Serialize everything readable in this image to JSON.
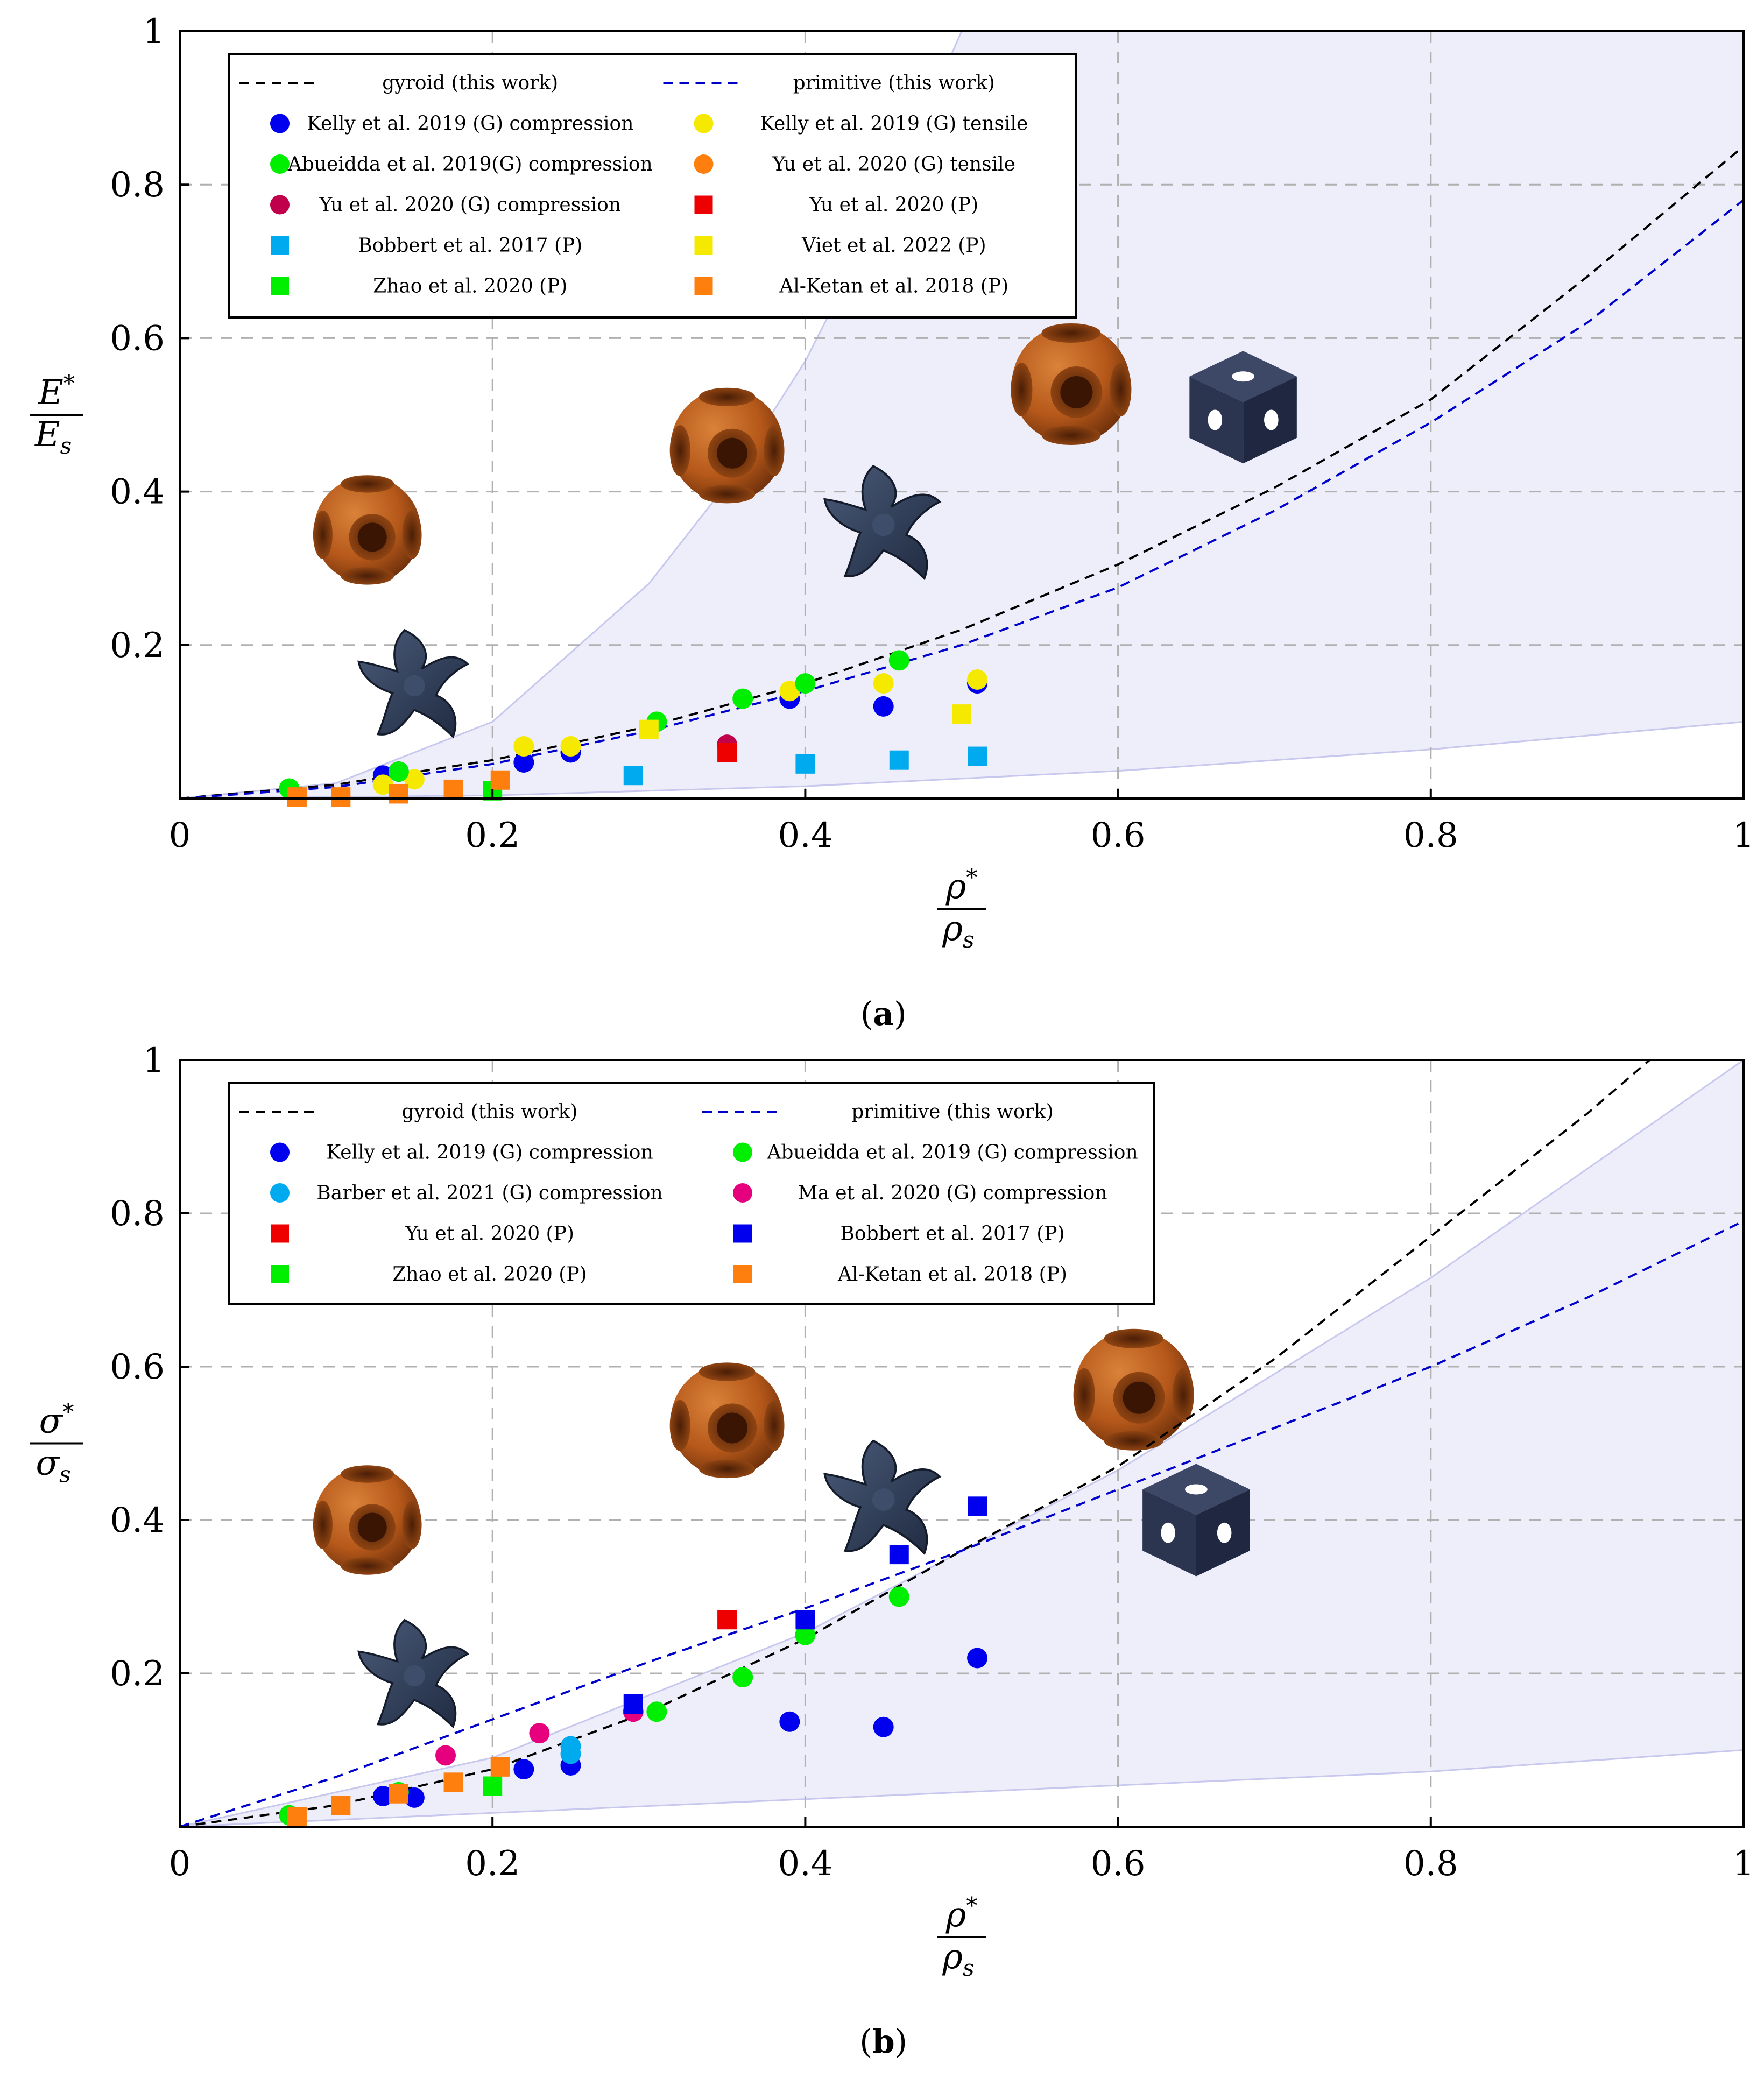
{
  "colors": {
    "blue": "#0000ee",
    "green": "#00ee00",
    "yellow": "#f5e900",
    "orange": "#ff7f0e",
    "crimson": "#c0004a",
    "red": "#ee0000",
    "skyblue": "#00aaee",
    "magenta": "#e6007e",
    "band": "#eeeefa",
    "bandEdge": "#c8c8ee",
    "gyroid_line": "#000000",
    "primitive_line": "#0000cc",
    "grid": "#b0b0b0",
    "sphere": "#b5581a",
    "gyroid_shape": "#2c3a56",
    "cube": "#2b3550"
  },
  "icons": [
    "primitive-cell-sphere",
    "gyroid-cell",
    "primitive-cell-cube"
  ],
  "chart_data": [
    {
      "type": "scatter",
      "panel": "a",
      "caption": "a",
      "xlabel": "ρ*/ρs",
      "ylabel": "E*/Es",
      "xlabel_parts": {
        "num": "ρ",
        "num_sup": "*",
        "den": "ρ",
        "den_sub": "s"
      },
      "ylabel_parts": {
        "num": "E",
        "num_sup": "*",
        "den": "E",
        "den_sub": "s"
      },
      "xlim": [
        0,
        1
      ],
      "ylim": [
        0,
        1
      ],
      "xticks": [
        "0",
        "0.2",
        "0.4",
        "0.6",
        "0.8",
        "1"
      ],
      "yticks": [
        "0.2",
        "0.4",
        "0.6",
        "0.8",
        "1"
      ],
      "grid": true,
      "legend_position": "top-left",
      "band": {
        "upper": {
          "x": [
            0,
            0.1,
            0.2,
            0.3,
            0.35,
            0.4,
            0.45,
            0.5
          ],
          "y": [
            0,
            0.02,
            0.1,
            0.28,
            0.41,
            0.57,
            0.77,
            1.0
          ]
        },
        "lower": {
          "x": [
            0,
            0.2,
            0.4,
            0.6,
            0.8,
            1.0
          ],
          "y": [
            0,
            0.004,
            0.016,
            0.036,
            0.064,
            0.1
          ]
        }
      },
      "lines": [
        {
          "name": "gyroid (this work)",
          "color": "gyroid_line",
          "x": [
            0,
            0.1,
            0.2,
            0.3,
            0.4,
            0.5,
            0.6,
            0.7,
            0.8,
            0.9,
            1.0
          ],
          "y": [
            0,
            0.018,
            0.05,
            0.094,
            0.15,
            0.22,
            0.305,
            0.405,
            0.52,
            0.68,
            0.85
          ]
        },
        {
          "name": "primitive (this work)",
          "color": "primitive_line",
          "x": [
            0,
            0.1,
            0.2,
            0.3,
            0.4,
            0.5,
            0.6,
            0.7,
            0.8,
            0.9,
            1.0
          ],
          "y": [
            0,
            0.015,
            0.045,
            0.088,
            0.14,
            0.2,
            0.275,
            0.375,
            0.49,
            0.62,
            0.78
          ]
        }
      ],
      "series": [
        {
          "name": "Kelly et al. 2019 (G) compression",
          "marker": "circle",
          "color": "blue",
          "x": [
            0.13,
            0.14,
            0.22,
            0.25,
            0.39,
            0.45,
            0.51
          ],
          "y": [
            0.03,
            0.035,
            0.047,
            0.06,
            0.13,
            0.12,
            0.15
          ]
        },
        {
          "name": "Kelly et al. 2019 (G) tensile",
          "marker": "circle",
          "color": "yellow",
          "x": [
            0.13,
            0.15,
            0.22,
            0.25,
            0.39,
            0.45,
            0.51
          ],
          "y": [
            0.018,
            0.025,
            0.068,
            0.068,
            0.14,
            0.15,
            0.155
          ]
        },
        {
          "name": "Abueidda et al. 2019(G) compression",
          "marker": "circle",
          "color": "green",
          "x": [
            0.07,
            0.14,
            0.305,
            0.36,
            0.4,
            0.46
          ],
          "y": [
            0.013,
            0.035,
            0.1,
            0.13,
            0.15,
            0.18
          ]
        },
        {
          "name": "Yu et al. 2020 (G) tensile",
          "marker": "circle",
          "color": "orange",
          "x": [],
          "y": []
        },
        {
          "name": "Yu et al. 2020 (G) compression",
          "marker": "circle",
          "color": "crimson",
          "x": [
            0.35
          ],
          "y": [
            0.07
          ]
        },
        {
          "name": "Yu et al. 2020 (P)",
          "marker": "square",
          "color": "red",
          "x": [
            0.35
          ],
          "y": [
            0.06
          ]
        },
        {
          "name": "Bobbert et al. 2017 (P)",
          "marker": "square",
          "color": "skyblue",
          "x": [
            0.29,
            0.4,
            0.46,
            0.51
          ],
          "y": [
            0.03,
            0.045,
            0.05,
            0.055
          ]
        },
        {
          "name": "Viet et al. 2022 (P)",
          "marker": "square",
          "color": "yellow",
          "x": [
            0.3,
            0.5
          ],
          "y": [
            0.09,
            0.11
          ]
        },
        {
          "name": "Zhao et al. 2020 (P)",
          "marker": "square",
          "color": "green",
          "x": [
            0.2
          ],
          "y": [
            0.01
          ]
        },
        {
          "name": "Al-Ketan et al. 2018 (P)",
          "marker": "square",
          "color": "orange",
          "x": [
            0.075,
            0.103,
            0.14,
            0.175,
            0.205
          ],
          "y": [
            0.002,
            0.002,
            0.006,
            0.012,
            0.024
          ]
        }
      ],
      "legend": {
        "rows": [
          [
            {
              "key": "line",
              "color": "gyroid_line",
              "label": "gyroid (this work)"
            },
            {
              "key": "line",
              "color": "primitive_line",
              "label": "primitive (this work)"
            }
          ],
          [
            {
              "key": "circle",
              "color": "blue",
              "label": "Kelly et al. 2019 (G) compression"
            },
            {
              "key": "circle",
              "color": "yellow",
              "label": "Kelly et al. 2019 (G) tensile"
            }
          ],
          [
            {
              "key": "circle",
              "color": "green",
              "label": "Abueidda et al. 2019(G) compression"
            },
            {
              "key": "circle",
              "color": "orange",
              "label": "Yu et al. 2020 (G) tensile"
            }
          ],
          [
            {
              "key": "circle",
              "color": "crimson",
              "label": "Yu et al. 2020 (G) compression"
            },
            {
              "key": "square",
              "color": "red",
              "label": "Yu et al. 2020 (P)"
            }
          ],
          [
            {
              "key": "square",
              "color": "skyblue",
              "label": "Bobbert et al. 2017 (P)"
            },
            {
              "key": "square",
              "color": "yellow",
              "label": "Viet et al. 2022 (P)"
            }
          ],
          [
            {
              "key": "square",
              "color": "green",
              "label": "Zhao et al. 2020 (P)"
            },
            {
              "key": "square",
              "color": "orange",
              "label": "Al-Ketan et al. 2018 (P)"
            }
          ]
        ]
      },
      "thumbnails": [
        {
          "icon": "primitive-cell-sphere",
          "x": 0.12,
          "y": 0.35,
          "scale": 0.9
        },
        {
          "icon": "primitive-cell-sphere",
          "x": 0.35,
          "y": 0.46,
          "scale": 0.95
        },
        {
          "icon": "primitive-cell-sphere",
          "x": 0.57,
          "y": 0.54,
          "scale": 1.0
        },
        {
          "icon": "gyroid-cell",
          "x": 0.15,
          "y": 0.15,
          "scale": 0.9
        },
        {
          "icon": "gyroid-cell",
          "x": 0.45,
          "y": 0.36,
          "scale": 0.95
        },
        {
          "icon": "primitive-cell-cube",
          "x": 0.68,
          "y": 0.51,
          "scale": 0.95
        }
      ]
    },
    {
      "type": "scatter",
      "panel": "b",
      "caption": "b",
      "xlabel": "ρ*/ρs",
      "ylabel": "σ*/σs",
      "xlabel_parts": {
        "num": "ρ",
        "num_sup": "*",
        "den": "ρ",
        "den_sub": "s"
      },
      "ylabel_parts": {
        "num": "σ",
        "num_sup": "*",
        "den": "σ",
        "den_sub": "s"
      },
      "xlim": [
        0,
        1
      ],
      "ylim": [
        0,
        1
      ],
      "xticks": [
        "0",
        "0.2",
        "0.4",
        "0.6",
        "0.8",
        "1"
      ],
      "yticks": [
        "0.2",
        "0.4",
        "0.6",
        "0.8",
        "1"
      ],
      "grid": true,
      "legend_position": "top-left",
      "band": {
        "upper": {
          "x": [
            0,
            0.2,
            0.4,
            0.6,
            0.8,
            1.0
          ],
          "y": [
            0,
            0.09,
            0.253,
            0.465,
            0.716,
            1.0
          ]
        },
        "lower": {
          "x": [
            0,
            0.2,
            0.4,
            0.6,
            0.8,
            1.0
          ],
          "y": [
            0,
            0.018,
            0.036,
            0.054,
            0.072,
            0.1
          ]
        }
      },
      "lines": [
        {
          "name": "gyroid (this work)",
          "color": "gyroid_line",
          "x": [
            0,
            0.1,
            0.2,
            0.3,
            0.4,
            0.5,
            0.6,
            0.7,
            0.8,
            0.9,
            0.94
          ],
          "y": [
            0,
            0.028,
            0.075,
            0.15,
            0.245,
            0.36,
            0.47,
            0.61,
            0.77,
            0.93,
            1.0
          ]
        },
        {
          "name": "primitive (this work)",
          "color": "primitive_line",
          "x": [
            0,
            0.1,
            0.2,
            0.3,
            0.4,
            0.5,
            0.6,
            0.7,
            0.8,
            0.9,
            1.0
          ],
          "y": [
            0,
            0.065,
            0.14,
            0.215,
            0.285,
            0.36,
            0.44,
            0.52,
            0.6,
            0.69,
            0.79
          ]
        }
      ],
      "series": [
        {
          "name": "Kelly et al. 2019 (G) compression",
          "marker": "circle",
          "color": "blue",
          "x": [
            0.13,
            0.15,
            0.22,
            0.25,
            0.39,
            0.45,
            0.51
          ],
          "y": [
            0.04,
            0.038,
            0.075,
            0.08,
            0.137,
            0.13,
            0.22
          ]
        },
        {
          "name": "Abueidda et al. 2019 (G) compression",
          "marker": "circle",
          "color": "green",
          "x": [
            0.07,
            0.14,
            0.305,
            0.36,
            0.4,
            0.46
          ],
          "y": [
            0.015,
            0.045,
            0.15,
            0.195,
            0.25,
            0.3
          ]
        },
        {
          "name": "Barber et al. 2021 (G) compression",
          "marker": "circle",
          "color": "skyblue",
          "x": [
            0.25,
            0.25
          ],
          "y": [
            0.095,
            0.105
          ]
        },
        {
          "name": "Ma et al. 2020 (G) compression",
          "marker": "circle",
          "color": "magenta",
          "x": [
            0.17,
            0.23,
            0.29
          ],
          "y": [
            0.093,
            0.122,
            0.15
          ]
        },
        {
          "name": "Yu et al. 2020 (P)",
          "marker": "square",
          "color": "red",
          "x": [
            0.35
          ],
          "y": [
            0.27
          ]
        },
        {
          "name": "Bobbert et al. 2017 (P)",
          "marker": "square",
          "color": "blue",
          "x": [
            0.29,
            0.4,
            0.46,
            0.51
          ],
          "y": [
            0.16,
            0.27,
            0.355,
            0.418
          ]
        },
        {
          "name": "Zhao et al. 2020 (P)",
          "marker": "square",
          "color": "green",
          "x": [
            0.2
          ],
          "y": [
            0.053
          ]
        },
        {
          "name": "Al-Ketan et al. 2018 (P)",
          "marker": "square",
          "color": "orange",
          "x": [
            0.075,
            0.103,
            0.14,
            0.175,
            0.205
          ],
          "y": [
            0.013,
            0.028,
            0.043,
            0.058,
            0.078
          ]
        }
      ],
      "legend": {
        "rows": [
          [
            {
              "key": "line",
              "color": "gyroid_line",
              "label": "gyroid (this work)"
            },
            {
              "key": "line",
              "color": "primitive_line",
              "label": "primitive (this work)"
            }
          ],
          [
            {
              "key": "circle",
              "color": "blue",
              "label": "Kelly et al. 2019 (G) compression"
            },
            {
              "key": "circle",
              "color": "green",
              "label": "Abueidda et al. 2019 (G) compression"
            }
          ],
          [
            {
              "key": "circle",
              "color": "skyblue",
              "label": "Barber et al. 2021 (G) compression"
            },
            {
              "key": "circle",
              "color": "magenta",
              "label": "Ma et al. 2020 (G) compression"
            }
          ],
          [
            {
              "key": "square",
              "color": "red",
              "label": "Yu et al. 2020 (P)"
            },
            {
              "key": "square",
              "color": "blue",
              "label": "Bobbert et al. 2017 (P)"
            }
          ],
          [
            {
              "key": "square",
              "color": "green",
              "label": "Zhao et al. 2020 (P)"
            },
            {
              "key": "square",
              "color": "orange",
              "label": "Al-Ketan et al. 2018 (P)"
            }
          ]
        ]
      },
      "thumbnails": [
        {
          "icon": "primitive-cell-sphere",
          "x": 0.12,
          "y": 0.4,
          "scale": 0.9
        },
        {
          "icon": "primitive-cell-sphere",
          "x": 0.35,
          "y": 0.53,
          "scale": 0.95
        },
        {
          "icon": "primitive-cell-sphere",
          "x": 0.61,
          "y": 0.57,
          "scale": 1.0
        },
        {
          "icon": "gyroid-cell",
          "x": 0.15,
          "y": 0.2,
          "scale": 0.9
        },
        {
          "icon": "gyroid-cell",
          "x": 0.45,
          "y": 0.43,
          "scale": 0.95
        },
        {
          "icon": "primitive-cell-cube",
          "x": 0.65,
          "y": 0.4,
          "scale": 0.95
        }
      ]
    }
  ]
}
